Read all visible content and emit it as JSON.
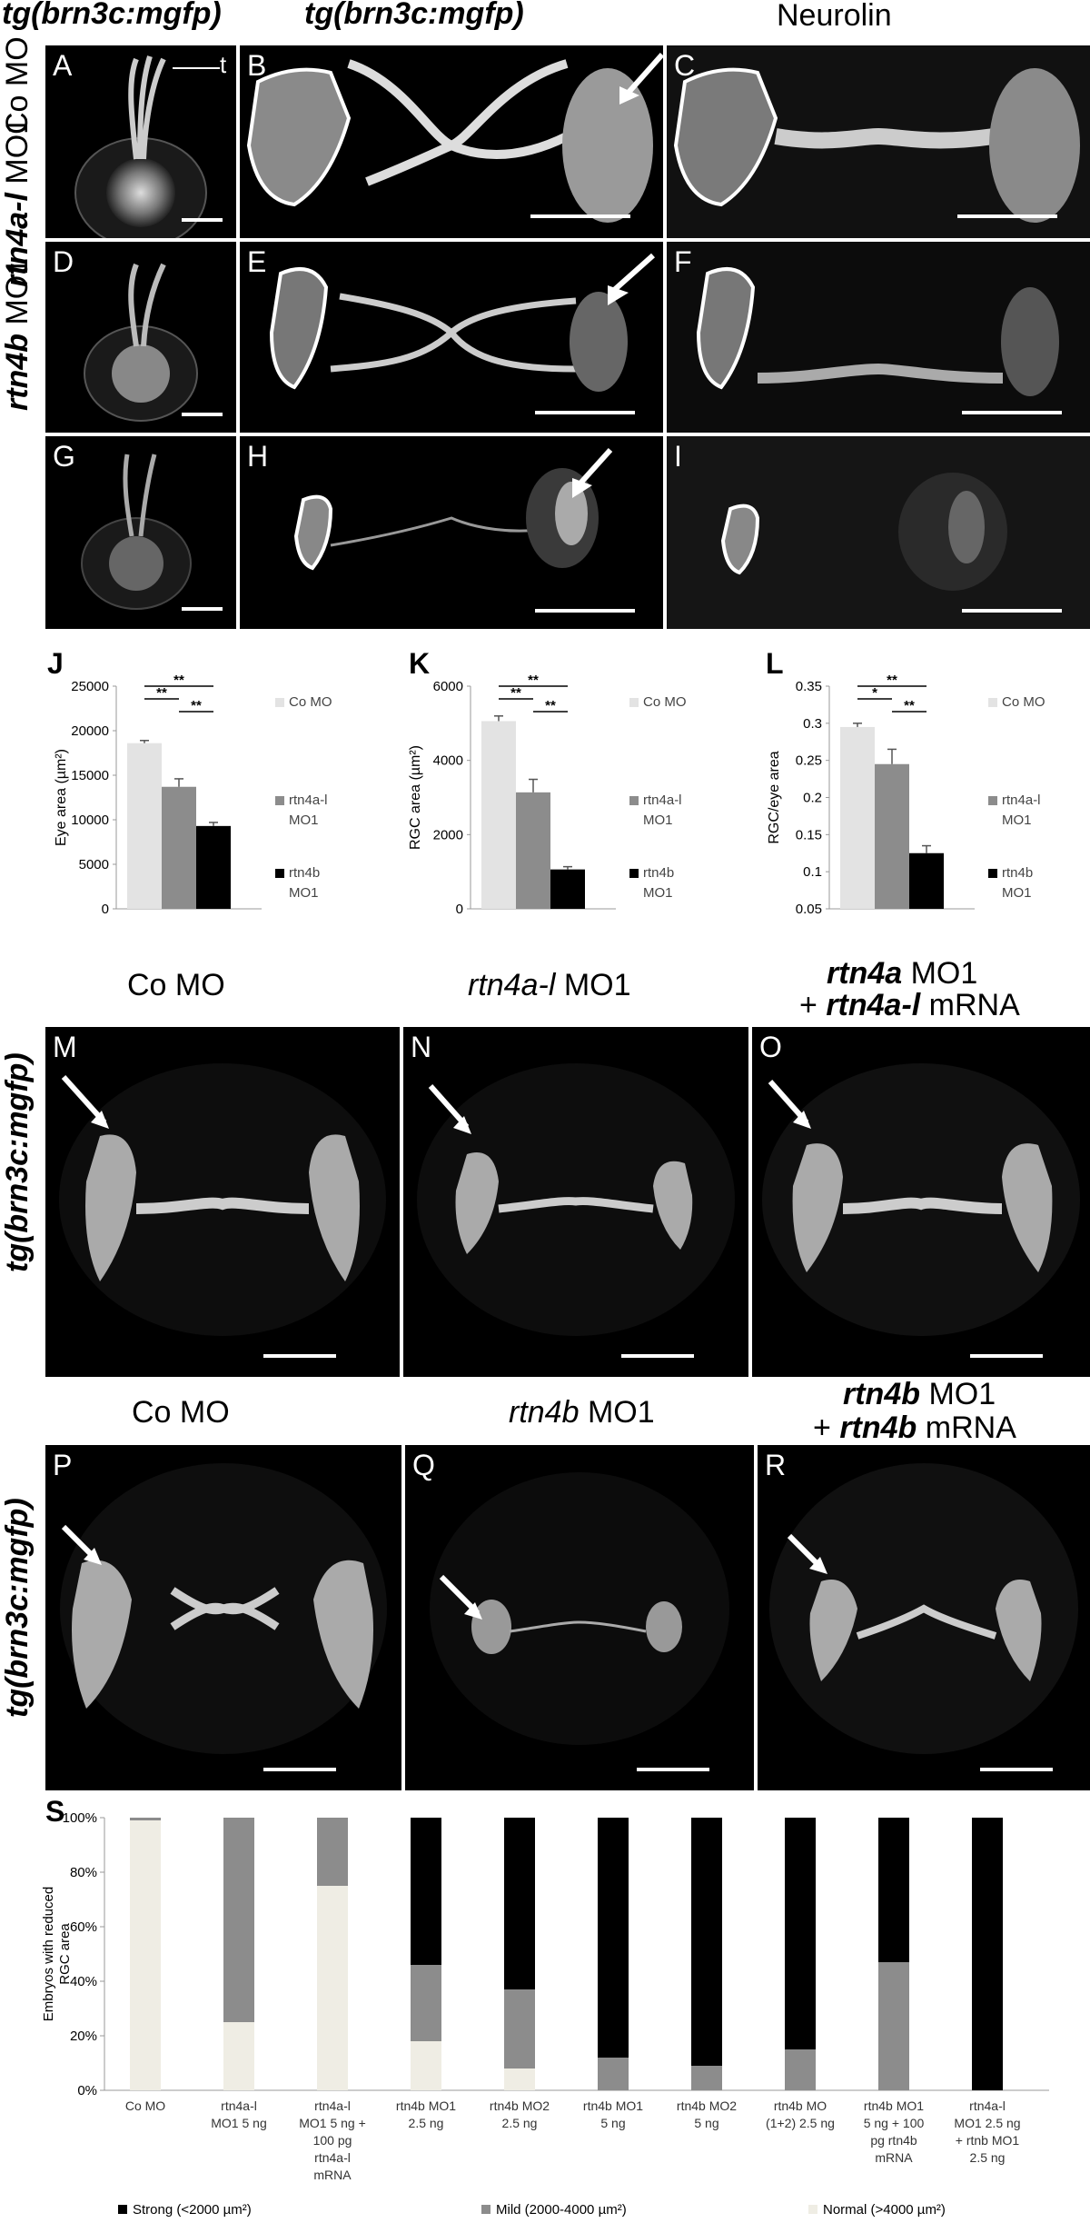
{
  "headers": {
    "col1": "tg(brn3c:mgfp)",
    "col2": "tg(brn3c:mgfp)",
    "col3": "Neurolin",
    "mid_col1": "Co MO",
    "mid_col2_it": "rtn4a-l",
    "mid_col2_rest": " MO1",
    "mid_col3_line1_it": "rtn4a",
    "mid_col3_line1_rest": " MO1",
    "mid_col3_line2_pre": "+ ",
    "mid_col3_line2_it": "rtn4a-l",
    "mid_col3_line2_rest": " mRNA",
    "low_col1": "Co MO",
    "low_col2_it": "rtn4b",
    "low_col2_rest": " MO1",
    "low_col3_line1_it": "rtn4b",
    "low_col3_line1_rest": " MO1",
    "low_col3_line2_pre": "+ ",
    "low_col3_line2_it": "rtn4b",
    "low_col3_line2_rest": " mRNA"
  },
  "row_labels": {
    "row1": "Co MO",
    "row2_it": "rtn4a-l",
    "row2_rest": " MO1",
    "row3_it": "rtn4b",
    "row3_rest": " MO1",
    "row_mid": "tg(brn3c:mgfp)",
    "row_low": "tg(brn3c:mgfp)"
  },
  "panels": {
    "A": "A",
    "B": "B",
    "C": "C",
    "D": "D",
    "E": "E",
    "F": "F",
    "G": "G",
    "H": "H",
    "I": "I",
    "M": "M",
    "N": "N",
    "O": "O",
    "P": "P",
    "Q": "Q",
    "R": "R",
    "t_label": "t"
  },
  "chart_labels": {
    "J": "J",
    "K": "K",
    "L": "L",
    "S": "S"
  },
  "chart_data": [
    {
      "type": "bar",
      "panel": "J",
      "categories": [
        "Co MO",
        "rtn4a-l MO1",
        "rtn4b MO1"
      ],
      "values": [
        18600,
        13700,
        9300
      ],
      "errors": [
        300,
        900,
        400
      ],
      "colors": [
        "#e3e3e3",
        "#8c8c8c",
        "#000000"
      ],
      "ylabel": "Eye area (µm²)",
      "ylim": [
        0,
        25000
      ],
      "yticks": [
        "0",
        "5000",
        "10000",
        "15000",
        "20000",
        "25000"
      ],
      "legend": [
        "Co MO",
        "rtn4a-l MO1",
        "rtn4b MO1"
      ],
      "significance": [
        "**",
        "**",
        "**"
      ]
    },
    {
      "type": "bar",
      "panel": "K",
      "categories": [
        "Co MO",
        "rtn4a-l MO1",
        "rtn4b MO1"
      ],
      "values": [
        5480,
        3400,
        1150
      ],
      "errors": [
        150,
        380,
        80
      ],
      "colors": [
        "#e3e3e3",
        "#8c8c8c",
        "#000000"
      ],
      "ylabel": "RGC area  (µm²)",
      "ylim": [
        0,
        6500
      ],
      "yticks": [
        "0",
        "2000",
        "4000",
        "6000"
      ],
      "legend": [
        "Co MO",
        "rtn4a-l MO1",
        "rtn4b MO1"
      ],
      "significance": [
        "**",
        "**",
        "**"
      ]
    },
    {
      "type": "bar",
      "panel": "L",
      "categories": [
        "Co MO",
        "rtn4a-l MO1",
        "rtn4b MO1"
      ],
      "values": [
        0.295,
        0.245,
        0.125
      ],
      "errors": [
        0.005,
        0.02,
        0.01
      ],
      "colors": [
        "#e3e3e3",
        "#8c8c8c",
        "#000000"
      ],
      "ylabel": "RGC/eye area",
      "ylim": [
        0.05,
        0.35
      ],
      "yticks": [
        "0.05",
        "0.1",
        "0.15",
        "0.2",
        "0.25",
        "0.3",
        "0.35"
      ],
      "legend": [
        "Co MO",
        "rtn4a-l MO1",
        "rtn4b MO1"
      ],
      "significance": [
        "**",
        "*",
        "**"
      ]
    },
    {
      "type": "bar",
      "panel": "S",
      "stacked": true,
      "ylabel": "Embryos with reduced RGC area",
      "ylim": [
        0,
        100
      ],
      "yticks": [
        "0%",
        "20%",
        "40%",
        "60%",
        "80%",
        "100%"
      ],
      "categories": [
        [
          "Co MO"
        ],
        [
          "rtn4a-l",
          "MO1 5 ng"
        ],
        [
          "rtn4a-l",
          "MO1 5 ng +",
          "100 pg",
          "rtn4a-l",
          "mRNA"
        ],
        [
          "rtn4b MO1",
          "2.5 ng"
        ],
        [
          "rtn4b MO2",
          "2.5 ng"
        ],
        [
          "rtn4b MO1",
          "5 ng"
        ],
        [
          "rtn4b MO2",
          "5 ng"
        ],
        [
          "rtn4b MO",
          "(1+2) 2.5 ng"
        ],
        [
          "rtn4b MO1",
          "5 ng + 100",
          "pg rtn4b",
          "mRNA"
        ],
        [
          "rtn4a-l",
          "MO1 2.5 ng",
          "+ rtnb MO1",
          "2.5 ng"
        ]
      ],
      "series": [
        {
          "name": "Normal (>4000 µm²)",
          "color": "#efede4",
          "values": [
            99,
            25,
            75,
            18,
            8,
            0,
            0,
            0,
            0,
            0
          ]
        },
        {
          "name": "Mild (2000-4000 µm²)",
          "color": "#8c8c8c",
          "values": [
            1,
            75,
            25,
            28,
            29,
            12,
            9,
            15,
            47,
            0
          ]
        },
        {
          "name": "Strong (<2000 µm²)",
          "color": "#000000",
          "values": [
            0,
            0,
            0,
            54,
            63,
            88,
            91,
            85,
            53,
            100
          ]
        }
      ]
    }
  ]
}
